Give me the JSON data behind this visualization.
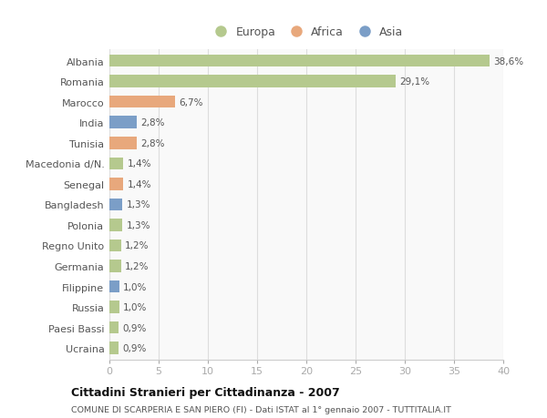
{
  "countries": [
    "Albania",
    "Romania",
    "Marocco",
    "India",
    "Tunisia",
    "Macedonia d/N.",
    "Senegal",
    "Bangladesh",
    "Polonia",
    "Regno Unito",
    "Germania",
    "Filippine",
    "Russia",
    "Paesi Bassi",
    "Ucraina"
  ],
  "values": [
    38.6,
    29.1,
    6.7,
    2.8,
    2.8,
    1.4,
    1.4,
    1.3,
    1.3,
    1.2,
    1.2,
    1.0,
    1.0,
    0.9,
    0.9
  ],
  "labels": [
    "38,6%",
    "29,1%",
    "6,7%",
    "2,8%",
    "2,8%",
    "1,4%",
    "1,4%",
    "1,3%",
    "1,3%",
    "1,2%",
    "1,2%",
    "1,0%",
    "1,0%",
    "0,9%",
    "0,9%"
  ],
  "continents": [
    "Europa",
    "Europa",
    "Africa",
    "Asia",
    "Africa",
    "Europa",
    "Africa",
    "Asia",
    "Europa",
    "Europa",
    "Europa",
    "Asia",
    "Europa",
    "Europa",
    "Europa"
  ],
  "colors": {
    "Europa": "#b5c98e",
    "Africa": "#e8a87c",
    "Asia": "#7b9ec7"
  },
  "title": "Cittadini Stranieri per Cittadinanza - 2007",
  "subtitle": "COMUNE DI SCARPERIA E SAN PIERO (FI) - Dati ISTAT al 1° gennaio 2007 - TUTTITALIA.IT",
  "xlim": [
    0,
    40
  ],
  "xticks": [
    0,
    5,
    10,
    15,
    20,
    25,
    30,
    35,
    40
  ],
  "background_color": "#ffffff",
  "plot_bg_color": "#f9f9f9",
  "grid_color": "#dddddd",
  "bar_height": 0.6
}
